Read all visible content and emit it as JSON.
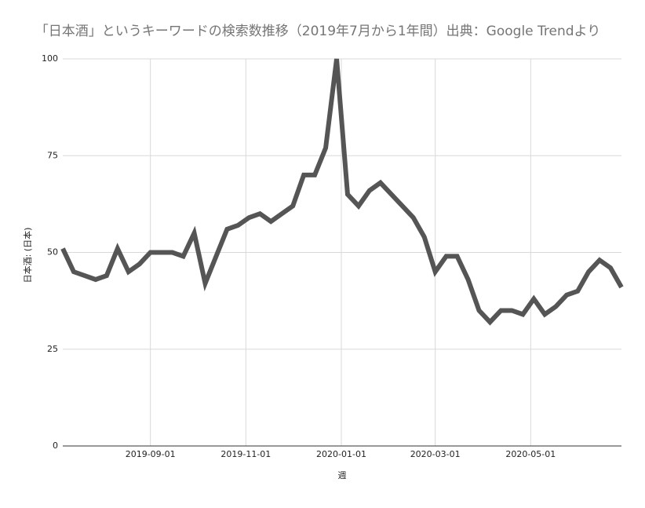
{
  "chart_data": {
    "type": "line",
    "title": "「日本酒」というキーワードの検索数推移（2019年7月から1年間）出典：Google Trendより",
    "x_label": "週",
    "y_label": "日本酒: (日本)",
    "x": [
      "2019-07-07",
      "2019-07-14",
      "2019-07-21",
      "2019-07-28",
      "2019-08-04",
      "2019-08-11",
      "2019-08-18",
      "2019-08-25",
      "2019-09-01",
      "2019-09-08",
      "2019-09-15",
      "2019-09-22",
      "2019-09-29",
      "2019-10-06",
      "2019-10-13",
      "2019-10-20",
      "2019-10-27",
      "2019-11-03",
      "2019-11-10",
      "2019-11-17",
      "2019-11-24",
      "2019-12-01",
      "2019-12-08",
      "2019-12-15",
      "2019-12-22",
      "2019-12-29",
      "2020-01-05",
      "2020-01-12",
      "2020-01-19",
      "2020-01-26",
      "2020-02-02",
      "2020-02-09",
      "2020-02-16",
      "2020-02-23",
      "2020-03-01",
      "2020-03-08",
      "2020-03-15",
      "2020-03-22",
      "2020-03-29",
      "2020-04-05",
      "2020-04-12",
      "2020-04-19",
      "2020-04-26",
      "2020-05-03",
      "2020-05-10",
      "2020-05-17",
      "2020-05-24",
      "2020-05-31",
      "2020-06-07",
      "2020-06-14",
      "2020-06-21",
      "2020-06-28"
    ],
    "values": [
      51,
      45,
      44,
      43,
      44,
      51,
      45,
      47,
      50,
      50,
      50,
      49,
      55,
      42,
      49,
      56,
      57,
      59,
      60,
      58,
      60,
      62,
      70,
      70,
      77,
      100,
      65,
      62,
      66,
      68,
      65,
      62,
      59,
      54,
      45,
      49,
      49,
      43,
      35,
      32,
      35,
      35,
      34,
      38,
      34,
      36,
      39,
      40,
      45,
      48,
      46,
      41
    ],
    "color": "#555555",
    "xlim": [
      "2019-07-07",
      "2020-06-28"
    ],
    "xticks": [
      "2019-09-01",
      "2019-11-01",
      "2020-01-01",
      "2020-03-01",
      "2020-05-01"
    ],
    "ylim": [
      0,
      100
    ],
    "yticks": [
      0,
      25,
      50,
      75,
      100
    ],
    "grid": true
  }
}
